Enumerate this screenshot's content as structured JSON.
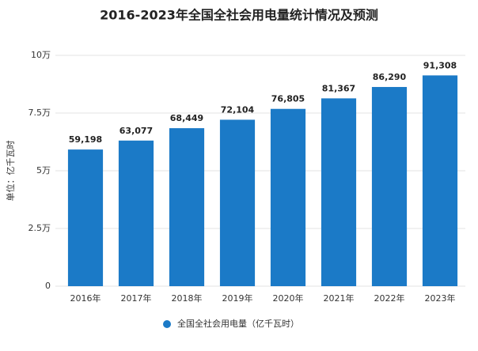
{
  "chart_data": {
    "type": "bar",
    "title": "2016-2023年全国全社会用电量统计情况及预测",
    "y_label": "单位：亿千瓦时",
    "categories": [
      "2016年",
      "2017年",
      "2018年",
      "2019年",
      "2020年",
      "2021年",
      "2022年",
      "2023年"
    ],
    "series": [
      {
        "name": "全国全社会用电量（亿千瓦时）",
        "color": "#1b7ac7",
        "values": [
          59198,
          63077,
          68449,
          72104,
          76805,
          81367,
          86290,
          91308
        ],
        "value_labels": [
          "59,198",
          "63,077",
          "68,449",
          "72,104",
          "76,805",
          "81,367",
          "86,290",
          "91,308"
        ]
      }
    ],
    "ylim": [
      0,
      100000
    ],
    "yticks": [
      0,
      {
        "value": 25000,
        "label": "2.5万"
      },
      {
        "value": 50000,
        "label": "5万"
      },
      {
        "value": 75000,
        "label": "7.5万"
      },
      {
        "value": 100000,
        "label": "10万"
      }
    ],
    "grid": true,
    "legend": "bottom"
  }
}
